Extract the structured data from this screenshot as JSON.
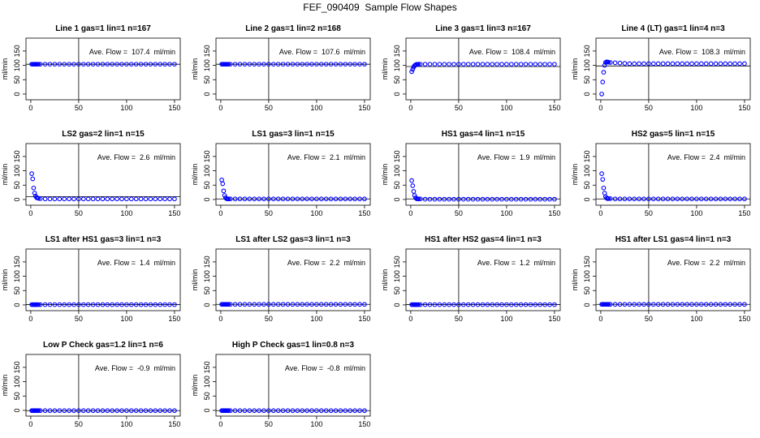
{
  "title": "FEF_090409  Sample Flow Shapes",
  "chart_data": [
    {
      "type": "scatter",
      "title": "Line 1 gas=1 lin=1 n=167",
      "y_label": "ml/min",
      "annotation": "Ave. Flow =  107.4  ml/min",
      "color": "#0000ff",
      "x": [
        1,
        2,
        3,
        4,
        5,
        6,
        7,
        8,
        10,
        15,
        20,
        25,
        30,
        35,
        40,
        45,
        50,
        55,
        60,
        65,
        70,
        75,
        80,
        85,
        90,
        95,
        100,
        105,
        110,
        115,
        120,
        125,
        130,
        135,
        140,
        145,
        150
      ],
      "values": [
        104,
        104,
        104,
        104,
        104,
        104,
        104,
        104,
        104,
        104,
        104,
        104,
        104,
        104,
        104,
        104,
        104,
        104,
        104,
        104,
        104,
        104,
        104,
        104,
        104,
        104,
        104,
        104,
        104,
        104,
        104,
        104,
        104,
        104,
        104,
        104,
        104
      ],
      "xlim": [
        -5,
        156
      ],
      "ylim": [
        -20,
        195
      ],
      "xticks": [
        0,
        50,
        100,
        150
      ],
      "yticks": [
        0,
        50,
        100,
        150
      ],
      "vline": 50,
      "hline": 104
    },
    {
      "type": "scatter",
      "title": "Line 2 gas=1 lin=2 n=168",
      "y_label": "ml/min",
      "annotation": "Ave. Flow =  107.6  ml/min",
      "color": "#0000ff",
      "x": [
        1,
        2,
        3,
        4,
        5,
        6,
        7,
        8,
        10,
        15,
        20,
        25,
        30,
        35,
        40,
        45,
        50,
        55,
        60,
        65,
        70,
        75,
        80,
        85,
        90,
        95,
        100,
        105,
        110,
        115,
        120,
        125,
        130,
        135,
        140,
        145,
        150
      ],
      "values": [
        104,
        104,
        104,
        104,
        104,
        104,
        104,
        104,
        104,
        104,
        104,
        104,
        104,
        104,
        104,
        104,
        104,
        104,
        104,
        104,
        104,
        104,
        104,
        104,
        104,
        104,
        104,
        104,
        104,
        104,
        104,
        104,
        104,
        104,
        104,
        104,
        104
      ],
      "xlim": [
        -5,
        156
      ],
      "ylim": [
        -20,
        195
      ],
      "xticks": [
        0,
        50,
        100,
        150
      ],
      "yticks": [
        0,
        50,
        100,
        150
      ],
      "vline": 50,
      "hline": 104
    },
    {
      "type": "scatter",
      "title": "Line 3 gas=1 lin=3 n=167",
      "y_label": "ml/min",
      "annotation": "Ave. Flow =  108.4  ml/min",
      "color": "#0000ff",
      "x": [
        1,
        2,
        3,
        4,
        5,
        6,
        7,
        8,
        10,
        15,
        20,
        25,
        30,
        35,
        40,
        45,
        50,
        55,
        60,
        65,
        70,
        75,
        80,
        85,
        90,
        95,
        100,
        105,
        110,
        115,
        120,
        125,
        130,
        135,
        140,
        145,
        150
      ],
      "values": [
        78,
        86,
        94,
        99,
        102,
        103,
        104,
        104,
        104,
        104,
        104,
        104,
        104,
        104,
        104,
        104,
        104,
        104,
        104,
        104,
        104,
        104,
        104,
        104,
        104,
        104,
        104,
        104,
        104,
        104,
        104,
        104,
        104,
        104,
        104,
        104,
        104
      ],
      "xlim": [
        -5,
        156
      ],
      "ylim": [
        -20,
        195
      ],
      "xticks": [
        0,
        50,
        100,
        150
      ],
      "yticks": [
        0,
        50,
        100,
        150
      ],
      "vline": 50,
      "hline": 96
    },
    {
      "type": "scatter",
      "title": "Line 4 (LT) gas=1 lin=4 n=3",
      "y_label": "ml/min",
      "annotation": "Ave. Flow =  108.3  ml/min",
      "color": "#0000ff",
      "x": [
        1,
        2,
        3,
        4,
        5,
        6,
        7,
        8,
        10,
        15,
        20,
        25,
        30,
        35,
        40,
        45,
        50,
        55,
        60,
        65,
        70,
        75,
        80,
        85,
        90,
        95,
        100,
        105,
        110,
        115,
        120,
        125,
        130,
        135,
        140,
        145,
        150
      ],
      "values": [
        0,
        42,
        76,
        100,
        110,
        112,
        112,
        111,
        110,
        109,
        108,
        107,
        106,
        106,
        106,
        106,
        106,
        106,
        106,
        106,
        106,
        106,
        106,
        106,
        106,
        106,
        106,
        106,
        106,
        106,
        106,
        106,
        106,
        106,
        106,
        106,
        106
      ],
      "xlim": [
        -5,
        156
      ],
      "ylim": [
        -20,
        195
      ],
      "xticks": [
        0,
        50,
        100,
        150
      ],
      "yticks": [
        0,
        50,
        100,
        150
      ],
      "vline": 50,
      "hline": 98
    },
    {
      "type": "scatter",
      "title": "LS2 gas=2 lin=1 n=15",
      "y_label": "ml/min",
      "annotation": "Ave. Flow =  2.6  ml/min",
      "color": "#0000ff",
      "x": [
        1,
        2,
        3,
        4,
        5,
        6,
        7,
        8,
        10,
        15,
        20,
        25,
        30,
        35,
        40,
        45,
        50,
        55,
        60,
        65,
        70,
        75,
        80,
        85,
        90,
        95,
        100,
        105,
        110,
        115,
        120,
        125,
        130,
        135,
        140,
        145,
        150
      ],
      "values": [
        90,
        72,
        40,
        22,
        12,
        7,
        5,
        4,
        3,
        2,
        2,
        2,
        2,
        2,
        2,
        2,
        2,
        2,
        2,
        2,
        2,
        2,
        2,
        2,
        2,
        2,
        2,
        2,
        2,
        2,
        2,
        2,
        2,
        2,
        2,
        2,
        2
      ],
      "xlim": [
        -5,
        156
      ],
      "ylim": [
        -20,
        195
      ],
      "xticks": [
        0,
        50,
        100,
        150
      ],
      "yticks": [
        0,
        50,
        100,
        150
      ],
      "vline": 50,
      "hline": 10
    },
    {
      "type": "scatter",
      "title": "LS1 gas=3 lin=1 n=15",
      "y_label": "ml/min",
      "annotation": "Ave. Flow =  2.1  ml/min",
      "color": "#0000ff",
      "x": [
        1,
        2,
        3,
        4,
        5,
        6,
        7,
        8,
        10,
        15,
        20,
        25,
        30,
        35,
        40,
        45,
        50,
        55,
        60,
        65,
        70,
        75,
        80,
        85,
        90,
        95,
        100,
        105,
        110,
        115,
        120,
        125,
        130,
        135,
        140,
        145,
        150
      ],
      "values": [
        68,
        55,
        30,
        14,
        6,
        3,
        2,
        2,
        2,
        2,
        2,
        2,
        2,
        2,
        2,
        2,
        2,
        2,
        2,
        2,
        2,
        2,
        2,
        2,
        2,
        2,
        2,
        2,
        2,
        2,
        2,
        2,
        2,
        2,
        2,
        2,
        2
      ],
      "xlim": [
        -5,
        156
      ],
      "ylim": [
        -20,
        195
      ],
      "xticks": [
        0,
        50,
        100,
        150
      ],
      "yticks": [
        0,
        50,
        100,
        150
      ],
      "vline": 50,
      "hline": 2
    },
    {
      "type": "scatter",
      "title": "HS1 gas=4 lin=1 n=15",
      "y_label": "ml/min",
      "annotation": "Ave. Flow =  1.9  ml/min",
      "color": "#0000ff",
      "x": [
        1,
        2,
        3,
        4,
        5,
        6,
        7,
        8,
        10,
        15,
        20,
        25,
        30,
        35,
        40,
        45,
        50,
        55,
        60,
        65,
        70,
        75,
        80,
        85,
        90,
        95,
        100,
        105,
        110,
        115,
        120,
        125,
        130,
        135,
        140,
        145,
        150
      ],
      "values": [
        66,
        48,
        28,
        14,
        6,
        3,
        2,
        2,
        2,
        1,
        1,
        1,
        1,
        1,
        1,
        1,
        1,
        1,
        1,
        1,
        1,
        1,
        1,
        1,
        1,
        1,
        1,
        1,
        1,
        1,
        1,
        1,
        1,
        1,
        1,
        1,
        1
      ],
      "xlim": [
        -5,
        156
      ],
      "ylim": [
        -20,
        195
      ],
      "xticks": [
        0,
        50,
        100,
        150
      ],
      "yticks": [
        0,
        50,
        100,
        150
      ],
      "vline": 50,
      "hline": 2
    },
    {
      "type": "scatter",
      "title": "HS2 gas=5 lin=1 n=15",
      "y_label": "ml/min",
      "annotation": "Ave. Flow =  2.4  ml/min",
      "color": "#0000ff",
      "x": [
        1,
        2,
        3,
        4,
        5,
        6,
        7,
        8,
        10,
        15,
        20,
        25,
        30,
        35,
        40,
        45,
        50,
        55,
        60,
        65,
        70,
        75,
        80,
        85,
        90,
        95,
        100,
        105,
        110,
        115,
        120,
        125,
        130,
        135,
        140,
        145,
        150
      ],
      "values": [
        90,
        70,
        40,
        22,
        10,
        5,
        3,
        3,
        3,
        2,
        2,
        2,
        2,
        2,
        2,
        2,
        2,
        2,
        2,
        2,
        2,
        2,
        2,
        2,
        2,
        2,
        2,
        2,
        2,
        2,
        2,
        2,
        2,
        2,
        2,
        2,
        2
      ],
      "xlim": [
        -5,
        156
      ],
      "ylim": [
        -20,
        195
      ],
      "xticks": [
        0,
        50,
        100,
        150
      ],
      "yticks": [
        0,
        50,
        100,
        150
      ],
      "vline": 50,
      "hline": 2
    },
    {
      "type": "scatter",
      "title": "LS1 after HS1 gas=3 lin=1 n=3",
      "y_label": "ml/min",
      "annotation": "Ave. Flow =  1.4  ml/min",
      "color": "#0000ff",
      "x": [
        1,
        2,
        3,
        4,
        5,
        6,
        7,
        8,
        10,
        15,
        20,
        25,
        30,
        35,
        40,
        45,
        50,
        55,
        60,
        65,
        70,
        75,
        80,
        85,
        90,
        95,
        100,
        105,
        110,
        115,
        120,
        125,
        130,
        135,
        140,
        145,
        150
      ],
      "values": [
        1,
        1,
        1,
        1,
        1,
        1,
        1,
        1,
        1,
        1,
        1,
        1,
        1,
        1,
        1,
        1,
        1,
        1,
        1,
        1,
        1,
        1,
        1,
        1,
        1,
        1,
        1,
        1,
        1,
        1,
        1,
        1,
        1,
        1,
        1,
        1,
        1
      ],
      "xlim": [
        -5,
        156
      ],
      "ylim": [
        -20,
        195
      ],
      "xticks": [
        0,
        50,
        100,
        150
      ],
      "yticks": [
        0,
        50,
        100,
        150
      ],
      "vline": 50,
      "hline": 1
    },
    {
      "type": "scatter",
      "title": "LS1 after LS2 gas=3 lin=1 n=3",
      "y_label": "ml/min",
      "annotation": "Ave. Flow =  2.2  ml/min",
      "color": "#0000ff",
      "x": [
        1,
        2,
        3,
        4,
        5,
        6,
        7,
        8,
        10,
        15,
        20,
        25,
        30,
        35,
        40,
        45,
        50,
        55,
        60,
        65,
        70,
        75,
        80,
        85,
        90,
        95,
        100,
        105,
        110,
        115,
        120,
        125,
        130,
        135,
        140,
        145,
        150
      ],
      "values": [
        2,
        2,
        2,
        2,
        2,
        2,
        2,
        2,
        2,
        2,
        2,
        2,
        2,
        2,
        2,
        2,
        2,
        2,
        2,
        2,
        2,
        2,
        2,
        2,
        2,
        2,
        2,
        2,
        2,
        2,
        2,
        2,
        2,
        2,
        2,
        2,
        2
      ],
      "xlim": [
        -5,
        156
      ],
      "ylim": [
        -20,
        195
      ],
      "xticks": [
        0,
        50,
        100,
        150
      ],
      "yticks": [
        0,
        50,
        100,
        150
      ],
      "vline": 50,
      "hline": 2
    },
    {
      "type": "scatter",
      "title": "HS1 after HS2 gas=4 lin=1 n=3",
      "y_label": "ml/min",
      "annotation": "Ave. Flow =  1.2  ml/min",
      "color": "#0000ff",
      "x": [
        1,
        2,
        3,
        4,
        5,
        6,
        7,
        8,
        10,
        15,
        20,
        25,
        30,
        35,
        40,
        45,
        50,
        55,
        60,
        65,
        70,
        75,
        80,
        85,
        90,
        95,
        100,
        105,
        110,
        115,
        120,
        125,
        130,
        135,
        140,
        145,
        150
      ],
      "values": [
        1,
        1,
        1,
        1,
        1,
        1,
        1,
        1,
        1,
        1,
        1,
        1,
        1,
        1,
        1,
        1,
        1,
        1,
        1,
        1,
        1,
        1,
        1,
        1,
        1,
        1,
        1,
        1,
        1,
        1,
        1,
        1,
        1,
        1,
        1,
        1,
        1
      ],
      "xlim": [
        -5,
        156
      ],
      "ylim": [
        -20,
        195
      ],
      "xticks": [
        0,
        50,
        100,
        150
      ],
      "yticks": [
        0,
        50,
        100,
        150
      ],
      "vline": 50,
      "hline": 1
    },
    {
      "type": "scatter",
      "title": "HS1 after LS1 gas=4 lin=1 n=3",
      "y_label": "ml/min",
      "annotation": "Ave. Flow =  2.2  ml/min",
      "color": "#0000ff",
      "x": [
        1,
        2,
        3,
        4,
        5,
        6,
        7,
        8,
        10,
        15,
        20,
        25,
        30,
        35,
        40,
        45,
        50,
        55,
        60,
        65,
        70,
        75,
        80,
        85,
        90,
        95,
        100,
        105,
        110,
        115,
        120,
        125,
        130,
        135,
        140,
        145,
        150
      ],
      "values": [
        2,
        2,
        2,
        2,
        2,
        2,
        2,
        2,
        2,
        2,
        2,
        2,
        2,
        2,
        2,
        2,
        2,
        2,
        2,
        2,
        2,
        2,
        2,
        2,
        2,
        2,
        2,
        2,
        2,
        2,
        2,
        2,
        2,
        2,
        2,
        2,
        2
      ],
      "xlim": [
        -5,
        156
      ],
      "ylim": [
        -20,
        195
      ],
      "xticks": [
        0,
        50,
        100,
        150
      ],
      "yticks": [
        0,
        50,
        100,
        150
      ],
      "vline": 50,
      "hline": 2
    },
    {
      "type": "scatter",
      "title": "Low P Check gas=1.2 lin=1 n=6",
      "y_label": "ml/min",
      "annotation": "Ave. Flow =  -0.9  ml/min",
      "color": "#0000ff",
      "x": [
        1,
        2,
        3,
        4,
        5,
        6,
        7,
        8,
        10,
        15,
        20,
        25,
        30,
        35,
        40,
        45,
        50,
        55,
        60,
        65,
        70,
        75,
        80,
        85,
        90,
        95,
        100,
        105,
        110,
        115,
        120,
        125,
        130,
        135,
        140,
        145,
        150
      ],
      "values": [
        -1,
        -1,
        -1,
        -1,
        -1,
        -1,
        -1,
        -1,
        -1,
        -1,
        -1,
        -1,
        -1,
        -1,
        -1,
        -1,
        -1,
        -1,
        -1,
        -1,
        -1,
        -1,
        -1,
        -1,
        -1,
        -1,
        -1,
        -1,
        -1,
        -1,
        -1,
        -1,
        -1,
        -1,
        -1,
        -1,
        -1
      ],
      "xlim": [
        -5,
        156
      ],
      "ylim": [
        -20,
        195
      ],
      "xticks": [
        0,
        50,
        100,
        150
      ],
      "yticks": [
        0,
        50,
        100,
        150
      ],
      "vline": 50,
      "hline": -1
    },
    {
      "type": "scatter",
      "title": "High P Check gas=1 lin=0.8 n=3",
      "y_label": "ml/min",
      "annotation": "Ave. Flow =  -0.8  ml/min",
      "color": "#0000ff",
      "x": [
        1,
        2,
        3,
        4,
        5,
        6,
        7,
        8,
        10,
        15,
        20,
        25,
        30,
        35,
        40,
        45,
        50,
        55,
        60,
        65,
        70,
        75,
        80,
        85,
        90,
        95,
        100,
        105,
        110,
        115,
        120,
        125,
        130,
        135,
        140,
        145,
        150
      ],
      "values": [
        -1,
        -1,
        -1,
        -1,
        -1,
        -1,
        -1,
        -1,
        -1,
        -1,
        -1,
        -1,
        -1,
        -1,
        -1,
        -1,
        -1,
        -1,
        -1,
        -1,
        -1,
        -1,
        -1,
        -1,
        -1,
        -1,
        -1,
        -1,
        -1,
        -1,
        -1,
        -1,
        -1,
        -1,
        -1,
        -1,
        -1
      ],
      "xlim": [
        -5,
        156
      ],
      "ylim": [
        -20,
        195
      ],
      "xticks": [
        0,
        50,
        100,
        150
      ],
      "yticks": [
        0,
        50,
        100,
        150
      ],
      "vline": 50,
      "hline": -1
    }
  ]
}
